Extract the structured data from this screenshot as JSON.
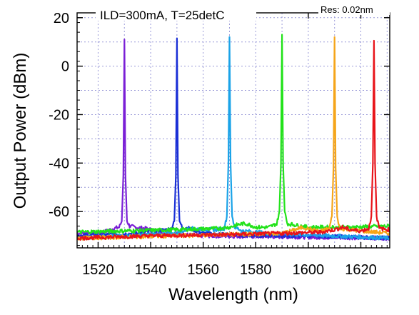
{
  "chart_data": {
    "type": "line",
    "title": "ILD=300mA, T=25detC",
    "annotation": "Res: 0.02nm",
    "xlabel": "Wavelength (nm)",
    "ylabel": "Output Power (dBm)",
    "xlim": [
      1512,
      1631
    ],
    "ylim": [
      -75,
      22
    ],
    "xticks": [
      1520,
      1540,
      1560,
      1580,
      1600,
      1620
    ],
    "xtick_labels": [
      "1520",
      "1540",
      "1560",
      "1580",
      "1600",
      "1620"
    ],
    "yticks": [
      20,
      0,
      -20,
      -40,
      -60
    ],
    "ytick_labels": [
      "20",
      "0",
      "-20",
      "-40",
      "-60"
    ],
    "grid": true,
    "series": [
      {
        "color": "#7a1fd6",
        "peak": [
          1530,
          11
        ],
        "floor": -67,
        "x": [
          1512,
          1522,
          1526,
          1528,
          1529,
          1529.6,
          1530,
          1530.4,
          1531,
          1532,
          1534,
          1538,
          1545,
          1560,
          1631
        ],
        "y": [
          -69,
          -68.5,
          -67,
          -66.5,
          -64,
          -45,
          11,
          -45,
          -64,
          -66,
          -66.5,
          -67,
          -69,
          -70,
          -71
        ]
      },
      {
        "color": "#1a2fd6",
        "peak": [
          1550,
          11.5
        ],
        "floor": -67,
        "x": [
          1512,
          1535,
          1542,
          1546,
          1548,
          1549,
          1549.6,
          1550,
          1550.4,
          1551,
          1552,
          1555,
          1560,
          1580,
          1600,
          1631
        ],
        "y": [
          -70,
          -69,
          -68,
          -67.5,
          -67,
          -64,
          -45,
          11.5,
          -45,
          -64,
          -66.5,
          -67,
          -69,
          -70,
          -70,
          -71
        ]
      },
      {
        "color": "#1aa3e8",
        "peak": [
          1570,
          12
        ],
        "floor": -68,
        "x": [
          1512,
          1550,
          1555,
          1565,
          1568,
          1569,
          1569.6,
          1570,
          1570.4,
          1571,
          1572,
          1575,
          1585,
          1631
        ],
        "y": [
          -71,
          -69,
          -67,
          -67.5,
          -67,
          -62,
          -40,
          12,
          -40,
          -62,
          -66.5,
          -68,
          -69,
          -71
        ]
      },
      {
        "color": "#22e21a",
        "peak": [
          1590,
          13
        ],
        "floor": -67,
        "x": [
          1512,
          1530,
          1550,
          1565,
          1570,
          1573,
          1575,
          1577,
          1580,
          1585,
          1588,
          1589,
          1589.6,
          1590,
          1590.4,
          1591,
          1592,
          1600,
          1615,
          1631
        ],
        "y": [
          -68.5,
          -68,
          -67.5,
          -67,
          -66.5,
          -65.5,
          -65,
          -65.2,
          -66.5,
          -66.5,
          -65,
          -60,
          -40,
          13,
          -40,
          -60,
          -65,
          -66.5,
          -66.5,
          -66
        ]
      },
      {
        "color": "#f5a51a",
        "peak": [
          1610,
          12
        ],
        "floor": -67,
        "x": [
          1512,
          1590,
          1595,
          1598,
          1601,
          1605,
          1608,
          1609,
          1609.6,
          1610,
          1610.4,
          1611,
          1612,
          1620,
          1631
        ],
        "y": [
          -71,
          -69,
          -67.5,
          -66.5,
          -67.5,
          -68,
          -67,
          -62,
          -42,
          12,
          -42,
          -62,
          -67,
          -68,
          -69
        ]
      },
      {
        "color": "#e8141a",
        "peak": [
          1625,
          10.5
        ],
        "floor": -68,
        "x": [
          1512,
          1540,
          1570,
          1590,
          1605,
          1610,
          1613,
          1616,
          1620,
          1623,
          1624,
          1624.6,
          1625,
          1625.4,
          1626,
          1627,
          1631
        ],
        "y": [
          -71,
          -70,
          -69.5,
          -69,
          -68.5,
          -67.5,
          -66.5,
          -67.5,
          -68,
          -67,
          -62,
          -40,
          10.5,
          -40,
          -62,
          -67,
          -67.5
        ]
      }
    ]
  }
}
